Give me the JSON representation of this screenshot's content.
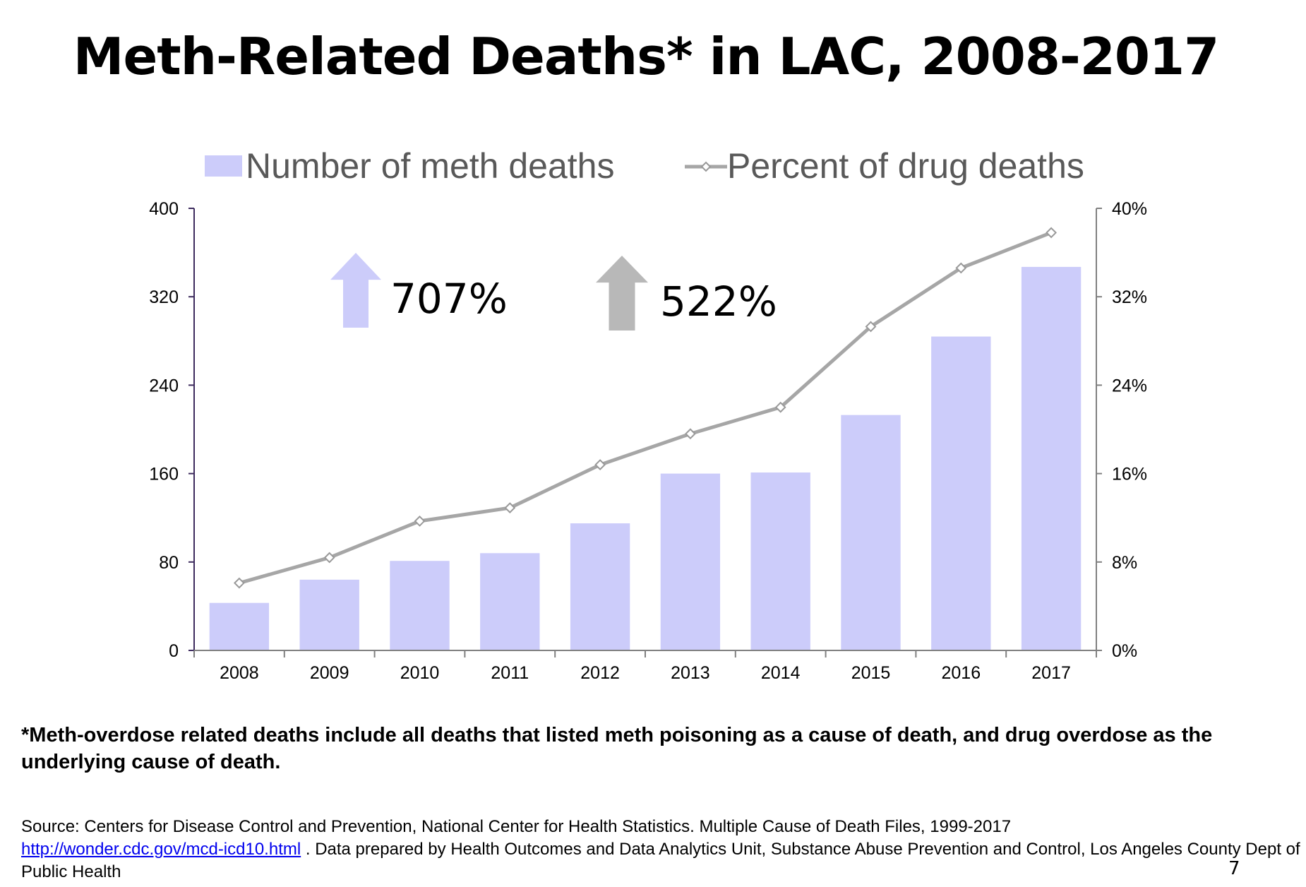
{
  "slide": {
    "title": "Meth-Related Deaths* in LAC, 2008-2017",
    "footnote": "*Meth-overdose related deaths include all deaths that listed meth poisoning as a cause of death, and drug overdose as the underlying cause of death.",
    "source_prefix": "Source: Centers for Disease Control and Prevention, National Center for Health Statistics. Multiple Cause of Death Files, 1999-2017",
    "source_link": "http://wonder.cdc.gov/mcd-icd10.html",
    "source_suffix": ". Data prepared by Health Outcomes and Data Analytics Unit, Substance Abuse Prevention and Control, Los Angeles County Dept of Public Health",
    "page_number": "7"
  },
  "chart_data": {
    "type": "bar",
    "categories": [
      "2008",
      "2009",
      "2010",
      "2011",
      "2012",
      "2013",
      "2014",
      "2015",
      "2016",
      "2017"
    ],
    "series": [
      {
        "name": "Number of meth deaths",
        "type": "bar",
        "axis": "left",
        "color": "#ccccfa",
        "values": [
          43,
          64,
          81,
          88,
          115,
          160,
          161,
          213,
          284,
          347
        ]
      },
      {
        "name": "Percent of drug deaths",
        "type": "line",
        "axis": "right",
        "color": "#a6a6a6",
        "values": [
          6.1,
          8.4,
          11.7,
          12.9,
          16.8,
          19.6,
          22.0,
          29.3,
          34.6,
          37.8
        ]
      }
    ],
    "y_left": {
      "lim": [
        0,
        400
      ],
      "ticks": [
        "0",
        "80",
        "160",
        "240",
        "320",
        "400"
      ]
    },
    "y_right": {
      "lim": [
        0,
        40
      ],
      "ticks": [
        "0%",
        "8%",
        "16%",
        "24%",
        "32%",
        "40%"
      ]
    },
    "legend": {
      "position": "top"
    },
    "grid": false,
    "annotations": [
      {
        "text": "707%",
        "arrow": "up",
        "color": "#ccccfa"
      },
      {
        "text": "522%",
        "arrow": "up",
        "color": "#b8b8b8"
      }
    ]
  }
}
